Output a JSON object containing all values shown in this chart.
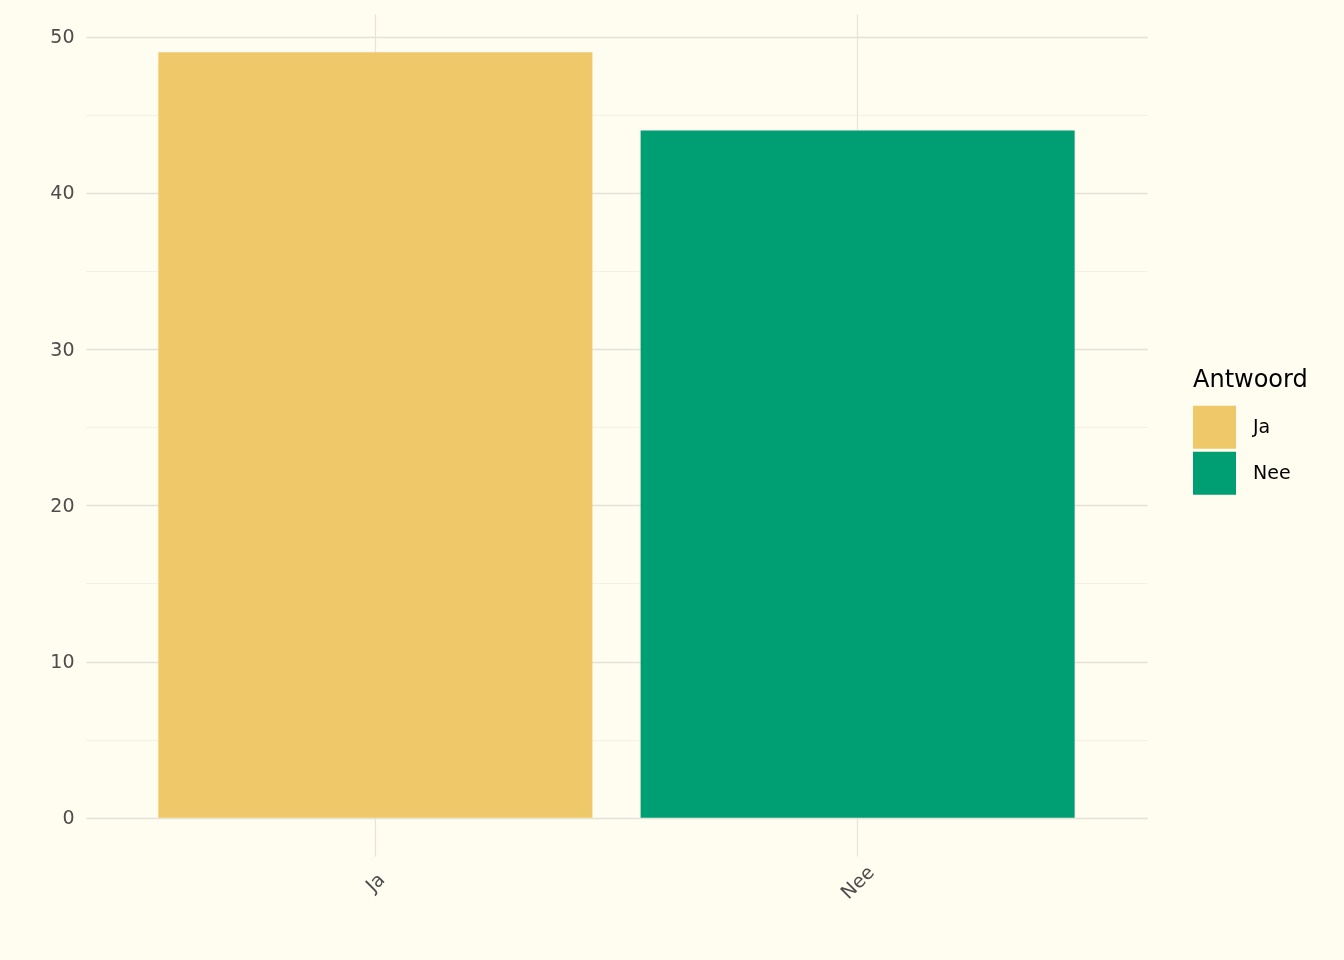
{
  "chart_data": {
    "type": "bar",
    "categories": [
      "Ja",
      "Nee"
    ],
    "series": [
      {
        "name": "Ja",
        "color": "#efc86a",
        "values": [
          49,
          null
        ]
      },
      {
        "name": "Nee",
        "color": "#009e73",
        "values": [
          null,
          44
        ]
      }
    ],
    "ylim": [
      -2.45,
      51.45
    ],
    "yticks": [
      0,
      {
        "value": 5,
        "label": null
      },
      10,
      {
        "value": 15,
        "label": null
      },
      20,
      {
        "value": 25,
        "label": null
      },
      30,
      {
        "value": 35,
        "label": null
      },
      40,
      {
        "value": 45,
        "label": null
      },
      50
    ],
    "grid": true,
    "legend": "right",
    "legend_title": "Antwoord"
  }
}
